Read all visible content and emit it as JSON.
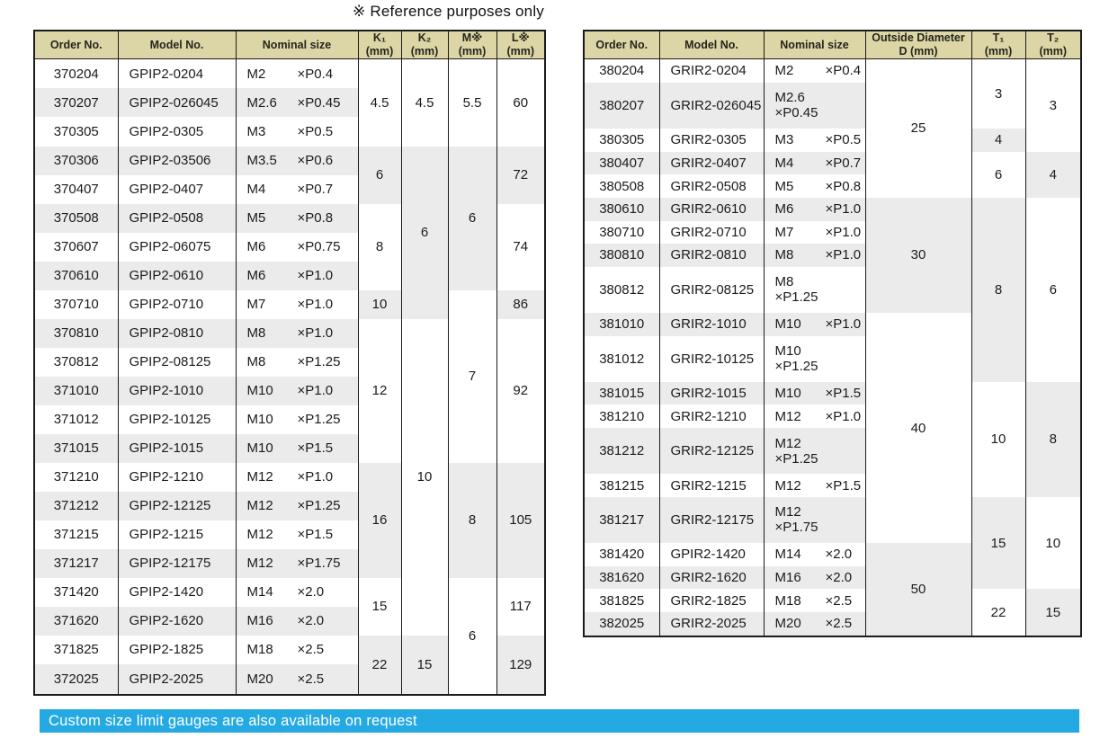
{
  "note": "※ Reference purposes only",
  "banner": {
    "text": "Custom size limit gauges are also available on request",
    "bg_color": "#25a9e2"
  },
  "colors": {
    "header_bg": "#dcd6a6",
    "stripe": "#ebebeb",
    "border": "#1a1a1a"
  },
  "left_table": {
    "name": "gpip2",
    "headers": [
      {
        "label": "Order No.",
        "unit": ""
      },
      {
        "label": "Model No.",
        "unit": ""
      },
      {
        "label": "Nominal size",
        "unit": ""
      },
      {
        "label": "K₁",
        "unit": "(mm)"
      },
      {
        "label": "K₂",
        "unit": "(mm)"
      },
      {
        "label": "M※",
        "unit": "(mm)"
      },
      {
        "label": "L※",
        "unit": "(mm)"
      }
    ],
    "rows": [
      {
        "order": "370204",
        "model": "GPIP2-0204",
        "size": "M2",
        "pitch": "×P0.4"
      },
      {
        "order": "370207",
        "model": "GPIP2-026045",
        "size": "M2.6",
        "pitch": "×P0.45"
      },
      {
        "order": "370305",
        "model": "GPIP2-0305",
        "size": "M3",
        "pitch": "×P0.5"
      },
      {
        "order": "370306",
        "model": "GPIP2-03506",
        "size": "M3.5",
        "pitch": "×P0.6"
      },
      {
        "order": "370407",
        "model": "GPIP2-0407",
        "size": "M4",
        "pitch": "×P0.7"
      },
      {
        "order": "370508",
        "model": "GPIP2-0508",
        "size": "M5",
        "pitch": "×P0.8"
      },
      {
        "order": "370607",
        "model": "GPIP2-06075",
        "size": "M6",
        "pitch": "×P0.75"
      },
      {
        "order": "370610",
        "model": "GPIP2-0610",
        "size": "M6",
        "pitch": "×P1.0"
      },
      {
        "order": "370710",
        "model": "GPIP2-0710",
        "size": "M7",
        "pitch": "×P1.0"
      },
      {
        "order": "370810",
        "model": "GPIP2-0810",
        "size": "M8",
        "pitch": "×P1.0"
      },
      {
        "order": "370812",
        "model": "GPIP2-08125",
        "size": "M8",
        "pitch": "×P1.25"
      },
      {
        "order": "371010",
        "model": "GPIP2-1010",
        "size": "M10",
        "pitch": "×P1.0"
      },
      {
        "order": "371012",
        "model": "GPIP2-10125",
        "size": "M10",
        "pitch": "×P1.25"
      },
      {
        "order": "371015",
        "model": "GPIP2-1015",
        "size": "M10",
        "pitch": "×P1.5"
      },
      {
        "order": "371210",
        "model": "GPIP2-1210",
        "size": "M12",
        "pitch": "×P1.0"
      },
      {
        "order": "371212",
        "model": "GPIP2-12125",
        "size": "M12",
        "pitch": "×P1.25"
      },
      {
        "order": "371215",
        "model": "GPIP2-1215",
        "size": "M12",
        "pitch": "×P1.5"
      },
      {
        "order": "371217",
        "model": "GPIP2-12175",
        "size": "M12",
        "pitch": "×P1.75"
      },
      {
        "order": "371420",
        "model": "GPIP2-1420",
        "size": "M14",
        "pitch": "×2.0"
      },
      {
        "order": "371620",
        "model": "GPIP2-1620",
        "size": "M16",
        "pitch": "×2.0"
      },
      {
        "order": "371825",
        "model": "GPIP2-1825",
        "size": "M18",
        "pitch": "×2.5"
      },
      {
        "order": "372025",
        "model": "GPIP2-2025",
        "size": "M20",
        "pitch": "×2.5"
      }
    ],
    "merged_columns": [
      {
        "key": "k1",
        "groups": [
          {
            "span": 3,
            "value": "4.5"
          },
          {
            "span": 2,
            "value": "6"
          },
          {
            "span": 3,
            "value": "8"
          },
          {
            "span": 1,
            "value": "10"
          },
          {
            "span": 5,
            "value": "12"
          },
          {
            "span": 4,
            "value": "16"
          },
          {
            "span": 2,
            "value": "15"
          },
          {
            "span": 2,
            "value": "22"
          }
        ]
      },
      {
        "key": "k2",
        "groups": [
          {
            "span": 3,
            "value": "4.5"
          },
          {
            "span": 6,
            "value": "6"
          },
          {
            "span": 11,
            "value": "10"
          },
          {
            "span": 2,
            "value": "15"
          }
        ]
      },
      {
        "key": "m",
        "groups": [
          {
            "span": 3,
            "value": "5.5"
          },
          {
            "span": 5,
            "value": "6"
          },
          {
            "span": 6,
            "value": "7"
          },
          {
            "span": 4,
            "value": "8"
          },
          {
            "span": 4,
            "value": "6"
          }
        ]
      },
      {
        "key": "l",
        "groups": [
          {
            "span": 3,
            "value": "60"
          },
          {
            "span": 2,
            "value": "72"
          },
          {
            "span": 3,
            "value": "74"
          },
          {
            "span": 1,
            "value": "86"
          },
          {
            "span": 5,
            "value": "92"
          },
          {
            "span": 4,
            "value": "105"
          },
          {
            "span": 2,
            "value": "117"
          },
          {
            "span": 2,
            "value": "129"
          }
        ]
      }
    ]
  },
  "right_table": {
    "name": "grir2",
    "headers": [
      {
        "label": "Order No.",
        "unit": ""
      },
      {
        "label": "Model No.",
        "unit": ""
      },
      {
        "label": "Nominal size",
        "unit": ""
      },
      {
        "label": "Outside Diameter",
        "unit": "D (mm)"
      },
      {
        "label": "T₁",
        "unit": "(mm)"
      },
      {
        "label": "T₂",
        "unit": "(mm)"
      }
    ],
    "rows": [
      {
        "order": "380204",
        "model": "GRIR2-0204",
        "size": "M2",
        "pitch": "×P0.4"
      },
      {
        "order": "380207",
        "model": "GRIR2-026045",
        "size": "M2.6",
        "pitch": "×P0.45"
      },
      {
        "order": "380305",
        "model": "GRIR2-0305",
        "size": "M3",
        "pitch": "×P0.5"
      },
      {
        "order": "380407",
        "model": "GRIR2-0407",
        "size": "M4",
        "pitch": "×P0.7"
      },
      {
        "order": "380508",
        "model": "GRIR2-0508",
        "size": "M5",
        "pitch": "×P0.8"
      },
      {
        "order": "380610",
        "model": "GRIR2-0610",
        "size": "M6",
        "pitch": "×P1.0"
      },
      {
        "order": "380710",
        "model": "GRIR2-0710",
        "size": "M7",
        "pitch": "×P1.0"
      },
      {
        "order": "380810",
        "model": "GRIR2-0810",
        "size": "M8",
        "pitch": "×P1.0"
      },
      {
        "order": "380812",
        "model": "GRIR2-08125",
        "size": "M8",
        "pitch": "×P1.25"
      },
      {
        "order": "381010",
        "model": "GRIR2-1010",
        "size": "M10",
        "pitch": "×P1.0"
      },
      {
        "order": "381012",
        "model": "GRIR2-10125",
        "size": "M10",
        "pitch": "×P1.25"
      },
      {
        "order": "381015",
        "model": "GRIR2-1015",
        "size": "M10",
        "pitch": "×P1.5"
      },
      {
        "order": "381210",
        "model": "GRIR2-1210",
        "size": "M12",
        "pitch": "×P1.0"
      },
      {
        "order": "381212",
        "model": "GRIR2-12125",
        "size": "M12",
        "pitch": "×P1.25"
      },
      {
        "order": "381215",
        "model": "GRIR2-1215",
        "size": "M12",
        "pitch": "×P1.5"
      },
      {
        "order": "381217",
        "model": "GRIR2-12175",
        "size": "M12",
        "pitch": "×P1.75"
      },
      {
        "order": "381420",
        "model": "GPIR2-1420",
        "size": "M14",
        "pitch": "×2.0"
      },
      {
        "order": "381620",
        "model": "GRIR2-1620",
        "size": "M16",
        "pitch": "×2.0"
      },
      {
        "order": "381825",
        "model": "GRIR2-1825",
        "size": "M18",
        "pitch": "×2.5"
      },
      {
        "order": "382025",
        "model": "GRIR2-2025",
        "size": "M20",
        "pitch": "×2.5"
      }
    ],
    "merged_columns": [
      {
        "key": "d",
        "groups": [
          {
            "span": 5,
            "value": "25"
          },
          {
            "span": 4,
            "value": "30"
          },
          {
            "span": 7,
            "value": "40"
          },
          {
            "span": 4,
            "value": "50"
          }
        ]
      },
      {
        "key": "t1",
        "groups": [
          {
            "span": 2,
            "value": "3"
          },
          {
            "span": 1,
            "value": "4"
          },
          {
            "span": 2,
            "value": "6"
          },
          {
            "span": 6,
            "value": "8"
          },
          {
            "span": 4,
            "value": "10"
          },
          {
            "span": 3,
            "value": "15"
          },
          {
            "span": 2,
            "value": "22"
          }
        ]
      },
      {
        "key": "t2",
        "groups": [
          {
            "span": 3,
            "value": "3"
          },
          {
            "span": 2,
            "value": "4"
          },
          {
            "span": 6,
            "value": "6"
          },
          {
            "span": 4,
            "value": "8"
          },
          {
            "span": 3,
            "value": "10"
          },
          {
            "span": 2,
            "value": "15"
          }
        ]
      }
    ]
  }
}
